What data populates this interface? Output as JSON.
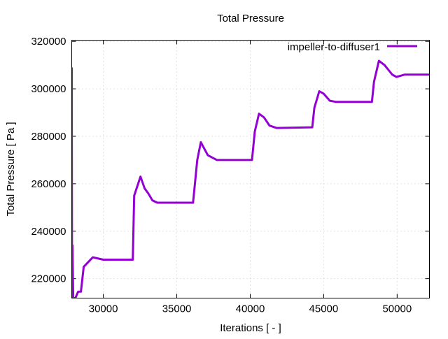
{
  "chart_data": {
    "type": "line",
    "title": "Total Pressure",
    "xlabel": "Iterations [ - ]",
    "ylabel": "Total Pressure [ Pa ]",
    "xlim": [
      27850,
      52200
    ],
    "ylim": [
      211800,
      320500
    ],
    "xticks": [
      30000,
      35000,
      40000,
      45000,
      50000
    ],
    "yticks": [
      220000,
      240000,
      260000,
      280000,
      300000,
      320000
    ],
    "grid": true,
    "legend_position": "top-right",
    "series": [
      {
        "name": "impeller-to-diffuser1",
        "color": "#9400d3",
        "x": [
          27852,
          27870,
          27900,
          27948,
          28043,
          28100,
          28282,
          28473,
          28664,
          29284,
          30000,
          32005,
          32100,
          32530,
          32816,
          33055,
          33341,
          33675,
          36110,
          36396,
          36635,
          37112,
          37733,
          40119,
          40310,
          40597,
          40931,
          41313,
          41790,
          44224,
          44367,
          44701,
          44988,
          45417,
          45847,
          48281,
          48424,
          48758,
          49140,
          49665,
          49952,
          50525,
          52195
        ],
        "y": [
          309000,
          212000,
          234000,
          212000,
          211800,
          211800,
          214500,
          214500,
          225000,
          229000,
          228000,
          228000,
          255000,
          263000,
          258000,
          256000,
          253000,
          252000,
          252000,
          270000,
          277500,
          272000,
          270000,
          270000,
          282000,
          289500,
          288000,
          284500,
          283500,
          283800,
          292000,
          299000,
          298000,
          295000,
          294500,
          294500,
          303000,
          311800,
          310000,
          306000,
          305000,
          306000,
          306000
        ]
      }
    ]
  }
}
